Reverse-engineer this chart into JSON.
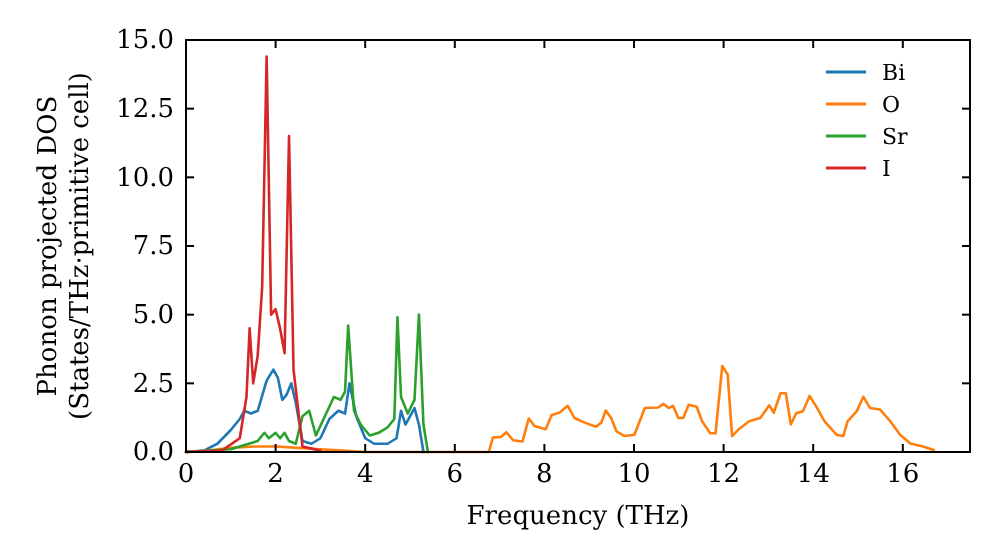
{
  "chart_data": {
    "type": "line",
    "xlabel": "Frequency (THz)",
    "ylabel": "Phonon projected DOS\n(States/THz·primitive cell)",
    "xlim": [
      0,
      17.5
    ],
    "xticks": [
      0,
      2,
      4,
      6,
      8,
      10,
      12,
      14,
      16
    ],
    "ylim": [
      0,
      15
    ],
    "yticks": [
      {
        "value": 0,
        "label": "0.0"
      },
      {
        "value": 2.5,
        "label": "2.5"
      },
      {
        "value": 5,
        "label": "5.0"
      },
      {
        "value": 7.5,
        "label": "7.5"
      },
      {
        "value": 10,
        "label": "10.0"
      },
      {
        "value": 12.5,
        "label": "12.5"
      },
      {
        "value": 15,
        "label": "15.0"
      }
    ],
    "grid": false,
    "legend": "top right",
    "series": [
      {
        "name": "Bi",
        "color": "#1f77b4",
        "x": [
          0,
          0.4,
          0.7,
          1.0,
          1.2,
          1.3,
          1.45,
          1.6,
          1.8,
          1.95,
          2.05,
          2.15,
          2.25,
          2.35,
          2.45,
          2.6,
          2.8,
          3.0,
          3.2,
          3.4,
          3.55,
          3.65,
          3.8,
          4.0,
          4.2,
          4.5,
          4.7,
          4.8,
          4.9,
          5.0,
          5.1,
          5.2,
          5.3
        ],
        "values": [
          0,
          0.05,
          0.3,
          0.8,
          1.2,
          1.5,
          1.4,
          1.5,
          2.6,
          3.0,
          2.7,
          1.9,
          2.1,
          2.5,
          1.8,
          0.4,
          0.3,
          0.5,
          1.2,
          1.5,
          1.4,
          2.5,
          1.3,
          0.5,
          0.3,
          0.3,
          0.5,
          1.5,
          1.0,
          1.3,
          1.6,
          1.0,
          0
        ]
      },
      {
        "name": "O",
        "color": "#ff7f0e",
        "x": [
          0,
          0.5,
          1.0,
          1.5,
          2.0,
          2.5,
          3.0,
          3.5,
          4.0,
          6.76,
          6.85,
          7.03,
          7.15,
          7.3,
          7.51,
          7.65,
          7.78,
          8.03,
          8.16,
          8.34,
          8.52,
          8.67,
          8.9,
          9.15,
          9.27,
          9.37,
          9.49,
          9.61,
          9.79,
          10.01,
          10.24,
          10.54,
          10.66,
          10.77,
          10.87,
          10.99,
          11.1,
          11.22,
          11.4,
          11.52,
          11.7,
          11.82,
          11.97,
          12.09,
          12.19,
          12.34,
          12.57,
          12.82,
          13.02,
          13.12,
          13.27,
          13.39,
          13.5,
          13.62,
          13.77,
          13.92,
          14.07,
          14.25,
          14.52,
          14.67,
          14.77,
          14.97,
          15.12,
          15.27,
          15.49,
          15.72,
          15.94,
          16.17,
          16.47,
          16.69
        ],
        "values": [
          0,
          0.05,
          0.15,
          0.2,
          0.2,
          0.15,
          0.1,
          0.05,
          0,
          0,
          0.53,
          0.55,
          0.72,
          0.43,
          0.38,
          1.22,
          0.95,
          0.83,
          1.34,
          1.44,
          1.68,
          1.24,
          1.07,
          0.92,
          1.07,
          1.51,
          1.24,
          0.75,
          0.58,
          0.63,
          1.6,
          1.62,
          1.75,
          1.6,
          1.68,
          1.24,
          1.24,
          1.72,
          1.65,
          1.12,
          0.68,
          0.68,
          3.13,
          2.82,
          0.58,
          0.83,
          1.12,
          1.24,
          1.7,
          1.43,
          2.14,
          2.14,
          1.0,
          1.41,
          1.48,
          2.04,
          1.65,
          1.12,
          0.63,
          0.58,
          1.12,
          1.48,
          2.01,
          1.6,
          1.55,
          1.12,
          0.63,
          0.31,
          0.19,
          0.07
        ]
      },
      {
        "name": "Sr",
        "color": "#2ca02c",
        "x": [
          0,
          1.0,
          1.4,
          1.6,
          1.75,
          1.85,
          2.0,
          2.1,
          2.2,
          2.3,
          2.45,
          2.6,
          2.75,
          2.9,
          3.1,
          3.3,
          3.45,
          3.55,
          3.62,
          3.75,
          3.9,
          4.1,
          4.3,
          4.5,
          4.65,
          4.72,
          4.8,
          4.95,
          5.1,
          5.2,
          5.3,
          5.4
        ],
        "values": [
          0,
          0.1,
          0.3,
          0.4,
          0.7,
          0.5,
          0.7,
          0.5,
          0.7,
          0.4,
          0.3,
          1.3,
          1.5,
          0.6,
          1.3,
          2.0,
          1.9,
          2.2,
          4.6,
          1.5,
          1.0,
          0.6,
          0.7,
          0.9,
          1.2,
          4.9,
          2.0,
          1.4,
          1.9,
          5.0,
          1.0,
          0
        ]
      },
      {
        "name": "I",
        "color": "#d62728",
        "x": [
          0,
          0.8,
          1.2,
          1.35,
          1.42,
          1.5,
          1.6,
          1.7,
          1.8,
          1.9,
          2.0,
          2.1,
          2.2,
          2.3,
          2.4,
          2.6,
          3.0
        ],
        "values": [
          0,
          0.05,
          0.5,
          2.0,
          4.5,
          2.5,
          3.5,
          6.0,
          14.4,
          5.0,
          5.2,
          4.5,
          3.6,
          11.5,
          3.0,
          0.2,
          0.05
        ]
      }
    ]
  }
}
